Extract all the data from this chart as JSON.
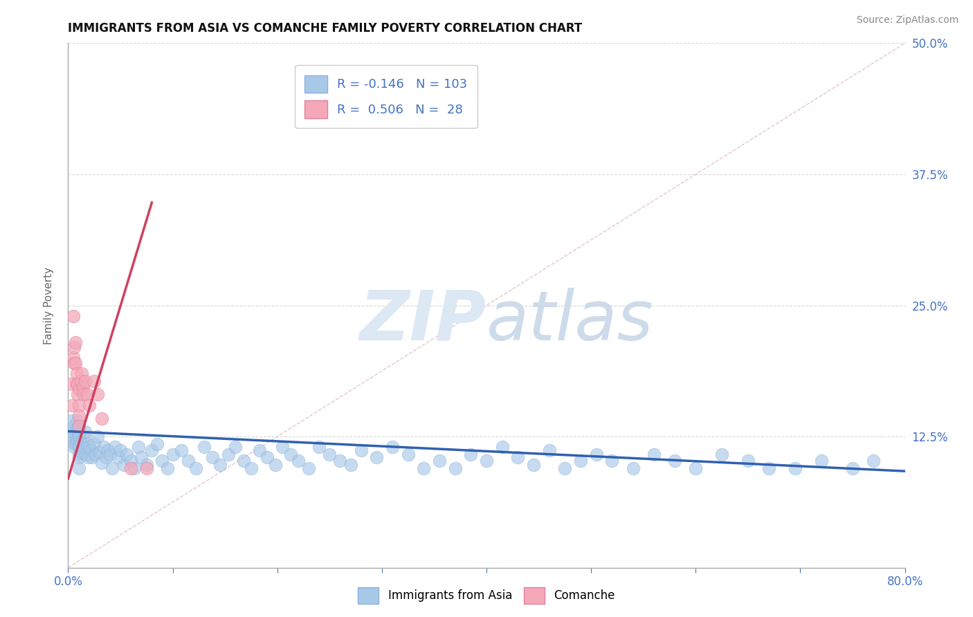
{
  "title": "IMMIGRANTS FROM ASIA VS COMANCHE FAMILY POVERTY CORRELATION CHART",
  "source": "Source: ZipAtlas.com",
  "ylabel": "Family Poverty",
  "x_min": 0.0,
  "x_max": 0.8,
  "y_min": 0.0,
  "y_max": 0.5,
  "x_ticks": [
    0.0,
    0.1,
    0.2,
    0.3,
    0.4,
    0.5,
    0.6,
    0.7,
    0.8
  ],
  "y_ticks": [
    0.0,
    0.125,
    0.25,
    0.375,
    0.5
  ],
  "color_blue": "#a8c8e8",
  "color_pink": "#f4a8b8",
  "color_blue_line": "#3060b0",
  "color_pink_line": "#d04060",
  "color_ref_line": "#e0b8b8",
  "watermark_zip": "ZIP",
  "watermark_atlas": "atlas",
  "watermark_color": "#dce8f4",
  "grid_color": "#d8d8d8",
  "tick_color": "#4472c4",
  "background_color": "#ffffff",
  "blue_scatter_x": [
    0.003,
    0.004,
    0.005,
    0.005,
    0.006,
    0.006,
    0.007,
    0.007,
    0.008,
    0.008,
    0.009,
    0.009,
    0.01,
    0.01,
    0.01,
    0.01,
    0.01,
    0.01,
    0.01,
    0.01,
    0.012,
    0.013,
    0.014,
    0.015,
    0.016,
    0.017,
    0.018,
    0.019,
    0.02,
    0.022,
    0.023,
    0.025,
    0.026,
    0.028,
    0.03,
    0.032,
    0.034,
    0.036,
    0.038,
    0.04,
    0.042,
    0.045,
    0.048,
    0.05,
    0.053,
    0.056,
    0.06,
    0.063,
    0.067,
    0.07,
    0.075,
    0.08,
    0.085,
    0.09,
    0.095,
    0.1,
    0.108,
    0.115,
    0.122,
    0.13,
    0.138,
    0.145,
    0.153,
    0.16,
    0.168,
    0.175,
    0.183,
    0.19,
    0.198,
    0.205,
    0.213,
    0.22,
    0.23,
    0.24,
    0.25,
    0.26,
    0.27,
    0.28,
    0.295,
    0.31,
    0.325,
    0.34,
    0.355,
    0.37,
    0.385,
    0.4,
    0.415,
    0.43,
    0.445,
    0.46,
    0.475,
    0.49,
    0.505,
    0.52,
    0.54,
    0.56,
    0.58,
    0.6,
    0.625,
    0.65,
    0.67,
    0.695,
    0.72,
    0.75,
    0.77
  ],
  "blue_scatter_y": [
    0.14,
    0.13,
    0.12,
    0.125,
    0.135,
    0.115,
    0.128,
    0.118,
    0.132,
    0.122,
    0.14,
    0.13,
    0.128,
    0.118,
    0.108,
    0.135,
    0.125,
    0.115,
    0.105,
    0.095,
    0.12,
    0.11,
    0.115,
    0.125,
    0.13,
    0.108,
    0.118,
    0.105,
    0.115,
    0.112,
    0.105,
    0.118,
    0.108,
    0.125,
    0.11,
    0.1,
    0.115,
    0.105,
    0.112,
    0.108,
    0.095,
    0.115,
    0.105,
    0.112,
    0.098,
    0.108,
    0.102,
    0.095,
    0.115,
    0.105,
    0.098,
    0.112,
    0.118,
    0.102,
    0.095,
    0.108,
    0.112,
    0.102,
    0.095,
    0.115,
    0.105,
    0.098,
    0.108,
    0.115,
    0.102,
    0.095,
    0.112,
    0.105,
    0.098,
    0.115,
    0.108,
    0.102,
    0.095,
    0.115,
    0.108,
    0.102,
    0.098,
    0.112,
    0.105,
    0.115,
    0.108,
    0.095,
    0.102,
    0.095,
    0.108,
    0.102,
    0.115,
    0.105,
    0.098,
    0.112,
    0.095,
    0.102,
    0.108,
    0.102,
    0.095,
    0.108,
    0.102,
    0.095,
    0.108,
    0.102,
    0.095,
    0.095,
    0.102,
    0.095,
    0.102
  ],
  "pink_scatter_x": [
    0.003,
    0.004,
    0.005,
    0.005,
    0.006,
    0.006,
    0.007,
    0.007,
    0.008,
    0.008,
    0.009,
    0.009,
    0.01,
    0.01,
    0.01,
    0.011,
    0.012,
    0.013,
    0.014,
    0.015,
    0.016,
    0.018,
    0.02,
    0.025,
    0.028,
    0.032,
    0.06,
    0.075
  ],
  "pink_scatter_y": [
    0.175,
    0.155,
    0.2,
    0.24,
    0.21,
    0.195,
    0.215,
    0.195,
    0.185,
    0.175,
    0.165,
    0.175,
    0.155,
    0.145,
    0.135,
    0.17,
    0.178,
    0.185,
    0.172,
    0.165,
    0.178,
    0.165,
    0.155,
    0.178,
    0.165,
    0.142,
    0.095,
    0.095
  ],
  "blue_trend_x": [
    0.0,
    0.8
  ],
  "blue_trend_y": [
    0.13,
    0.092
  ],
  "pink_trend_x": [
    0.0,
    0.08
  ],
  "pink_trend_y": [
    0.085,
    0.348
  ],
  "ref_line_x": [
    0.0,
    0.8
  ],
  "ref_line_y": [
    0.0,
    0.5
  ]
}
